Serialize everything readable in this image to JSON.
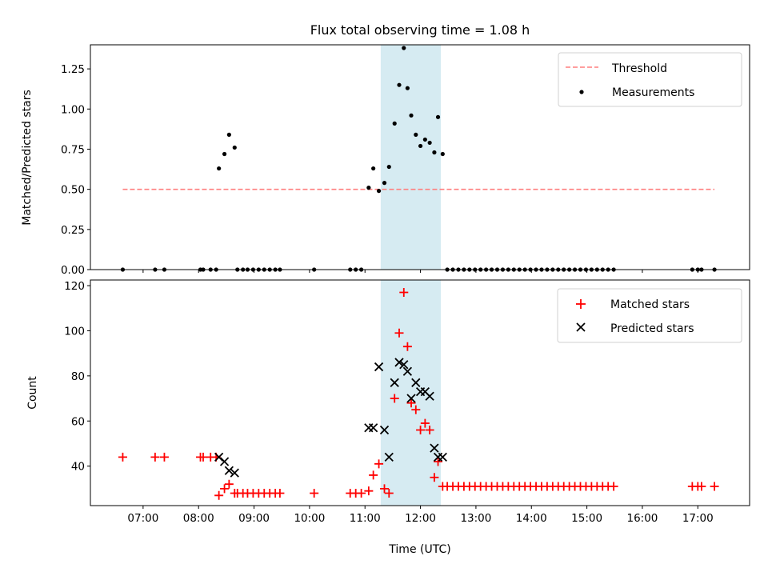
{
  "figure": {
    "title": "Flux total observing time = 1.08 h",
    "xlabel": "Time (UTC)",
    "x_tick_labels": [
      "07:00",
      "08:00",
      "09:00",
      "10:00",
      "11:00",
      "12:00",
      "13:00",
      "14:00",
      "15:00",
      "16:00",
      "17:00"
    ]
  },
  "chart_data": [
    {
      "type": "scatter",
      "ylabel": "Matched/Predicted stars",
      "xlim": [
        "06:03",
        "17:56"
      ],
      "ylim": [
        0,
        1.4
      ],
      "y_tick_labels": [
        "0.00",
        "0.25",
        "0.50",
        "0.75",
        "1.00",
        "1.25"
      ],
      "highlight_span": [
        "11:17",
        "12:22"
      ],
      "highlight_color": "#add8e6",
      "legend_position": "upper right",
      "threshold": {
        "name": "Threshold",
        "y": 0.5,
        "x_range": [
          "06:38",
          "17:18"
        ],
        "color": "#ff7f7f",
        "style": "dashed"
      },
      "series": [
        {
          "name": "Measurements",
          "color": "#000000",
          "points": [
            [
              "06:38",
              0
            ],
            [
              "07:13",
              0
            ],
            [
              "07:23",
              0
            ],
            [
              "08:02",
              0
            ],
            [
              "08:05",
              0
            ],
            [
              "08:13",
              0
            ],
            [
              "08:19",
              0
            ],
            [
              "08:22",
              0.63
            ],
            [
              "08:28",
              0.72
            ],
            [
              "08:33",
              0.84
            ],
            [
              "08:39",
              0.76
            ],
            [
              "08:42",
              0
            ],
            [
              "08:48",
              0
            ],
            [
              "08:53",
              0
            ],
            [
              "08:59",
              0
            ],
            [
              "09:05",
              0
            ],
            [
              "09:11",
              0
            ],
            [
              "09:17",
              0
            ],
            [
              "09:23",
              0
            ],
            [
              "09:28",
              0
            ],
            [
              "10:05",
              0
            ],
            [
              "10:44",
              0
            ],
            [
              "10:50",
              0
            ],
            [
              "10:56",
              0
            ],
            [
              "11:04",
              0.51
            ],
            [
              "11:09",
              0.63
            ],
            [
              "11:15",
              0.49
            ],
            [
              "11:21",
              0.54
            ],
            [
              "11:26",
              0.64
            ],
            [
              "11:32",
              0.91
            ],
            [
              "11:37",
              1.15
            ],
            [
              "11:42",
              1.38
            ],
            [
              "11:46",
              1.13
            ],
            [
              "11:50",
              0.96
            ],
            [
              "11:55",
              0.84
            ],
            [
              "12:00",
              0.77
            ],
            [
              "12:05",
              0.81
            ],
            [
              "12:10",
              0.79
            ],
            [
              "12:15",
              0.73
            ],
            [
              "12:19",
              0.95
            ],
            [
              "12:24",
              0.72
            ],
            [
              "12:29",
              0
            ],
            [
              "12:35",
              0
            ],
            [
              "12:41",
              0
            ],
            [
              "12:47",
              0
            ],
            [
              "12:53",
              0
            ],
            [
              "12:59",
              0
            ],
            [
              "13:05",
              0
            ],
            [
              "13:11",
              0
            ],
            [
              "13:17",
              0
            ],
            [
              "13:23",
              0
            ],
            [
              "13:29",
              0
            ],
            [
              "13:35",
              0
            ],
            [
              "13:41",
              0
            ],
            [
              "13:47",
              0
            ],
            [
              "13:53",
              0
            ],
            [
              "13:59",
              0
            ],
            [
              "14:05",
              0
            ],
            [
              "14:11",
              0
            ],
            [
              "14:17",
              0
            ],
            [
              "14:23",
              0
            ],
            [
              "14:29",
              0
            ],
            [
              "14:35",
              0
            ],
            [
              "14:41",
              0
            ],
            [
              "14:47",
              0
            ],
            [
              "14:53",
              0
            ],
            [
              "14:59",
              0
            ],
            [
              "15:05",
              0
            ],
            [
              "15:11",
              0
            ],
            [
              "15:17",
              0
            ],
            [
              "15:23",
              0
            ],
            [
              "15:29",
              0
            ],
            [
              "16:54",
              0
            ],
            [
              "17:00",
              0
            ],
            [
              "17:04",
              0
            ],
            [
              "17:18",
              0
            ]
          ]
        }
      ]
    },
    {
      "type": "scatter",
      "ylabel": "Count",
      "xlim": [
        "06:03",
        "17:56"
      ],
      "ylim": [
        22.5,
        122.5
      ],
      "y_tick_labels": [
        "40",
        "60",
        "80",
        "100",
        "120"
      ],
      "highlight_span": [
        "11:17",
        "12:22"
      ],
      "highlight_color": "#add8e6",
      "legend_position": "upper right",
      "series": [
        {
          "name": "Matched stars",
          "marker": "plus",
          "color": "#ff0000",
          "points": [
            [
              "06:38",
              44
            ],
            [
              "07:13",
              44
            ],
            [
              "07:23",
              44
            ],
            [
              "08:02",
              44
            ],
            [
              "08:05",
              44
            ],
            [
              "08:13",
              44
            ],
            [
              "08:19",
              44
            ],
            [
              "08:22",
              27
            ],
            [
              "08:28",
              30
            ],
            [
              "08:33",
              32
            ],
            [
              "08:39",
              28
            ],
            [
              "08:42",
              28
            ],
            [
              "08:48",
              28
            ],
            [
              "08:53",
              28
            ],
            [
              "08:59",
              28
            ],
            [
              "09:05",
              28
            ],
            [
              "09:11",
              28
            ],
            [
              "09:17",
              28
            ],
            [
              "09:23",
              28
            ],
            [
              "09:28",
              28
            ],
            [
              "10:05",
              28
            ],
            [
              "10:44",
              28
            ],
            [
              "10:50",
              28
            ],
            [
              "10:56",
              28
            ],
            [
              "11:04",
              29
            ],
            [
              "11:09",
              36
            ],
            [
              "11:15",
              41
            ],
            [
              "11:21",
              30
            ],
            [
              "11:26",
              28
            ],
            [
              "11:32",
              70
            ],
            [
              "11:37",
              99
            ],
            [
              "11:42",
              117
            ],
            [
              "11:46",
              93
            ],
            [
              "11:50",
              68
            ],
            [
              "11:55",
              65
            ],
            [
              "12:00",
              56
            ],
            [
              "12:05",
              59
            ],
            [
              "12:10",
              56
            ],
            [
              "12:15",
              35
            ],
            [
              "12:19",
              42
            ],
            [
              "12:24",
              31
            ],
            [
              "12:29",
              31
            ],
            [
              "12:35",
              31
            ],
            [
              "12:41",
              31
            ],
            [
              "12:47",
              31
            ],
            [
              "12:53",
              31
            ],
            [
              "12:59",
              31
            ],
            [
              "13:05",
              31
            ],
            [
              "13:11",
              31
            ],
            [
              "13:17",
              31
            ],
            [
              "13:23",
              31
            ],
            [
              "13:29",
              31
            ],
            [
              "13:35",
              31
            ],
            [
              "13:41",
              31
            ],
            [
              "13:47",
              31
            ],
            [
              "13:53",
              31
            ],
            [
              "13:59",
              31
            ],
            [
              "14:05",
              31
            ],
            [
              "14:11",
              31
            ],
            [
              "14:17",
              31
            ],
            [
              "14:23",
              31
            ],
            [
              "14:29",
              31
            ],
            [
              "14:35",
              31
            ],
            [
              "14:41",
              31
            ],
            [
              "14:47",
              31
            ],
            [
              "14:53",
              31
            ],
            [
              "14:59",
              31
            ],
            [
              "15:05",
              31
            ],
            [
              "15:11",
              31
            ],
            [
              "15:17",
              31
            ],
            [
              "15:23",
              31
            ],
            [
              "15:29",
              31
            ],
            [
              "16:54",
              31
            ],
            [
              "17:00",
              31
            ],
            [
              "17:04",
              31
            ],
            [
              "17:18",
              31
            ]
          ]
        },
        {
          "name": "Predicted stars",
          "marker": "x",
          "color": "#000000",
          "points": [
            [
              "08:22",
              44
            ],
            [
              "08:28",
              42
            ],
            [
              "08:33",
              38
            ],
            [
              "08:39",
              37
            ],
            [
              "11:04",
              57
            ],
            [
              "11:09",
              57
            ],
            [
              "11:15",
              84
            ],
            [
              "11:21",
              56
            ],
            [
              "11:26",
              44
            ],
            [
              "11:32",
              77
            ],
            [
              "11:37",
              86
            ],
            [
              "11:42",
              85
            ],
            [
              "11:46",
              82
            ],
            [
              "11:50",
              70
            ],
            [
              "11:55",
              77
            ],
            [
              "12:00",
              73
            ],
            [
              "12:05",
              73
            ],
            [
              "12:10",
              71
            ],
            [
              "12:15",
              48
            ],
            [
              "12:19",
              44
            ],
            [
              "12:24",
              44
            ]
          ]
        }
      ]
    }
  ]
}
